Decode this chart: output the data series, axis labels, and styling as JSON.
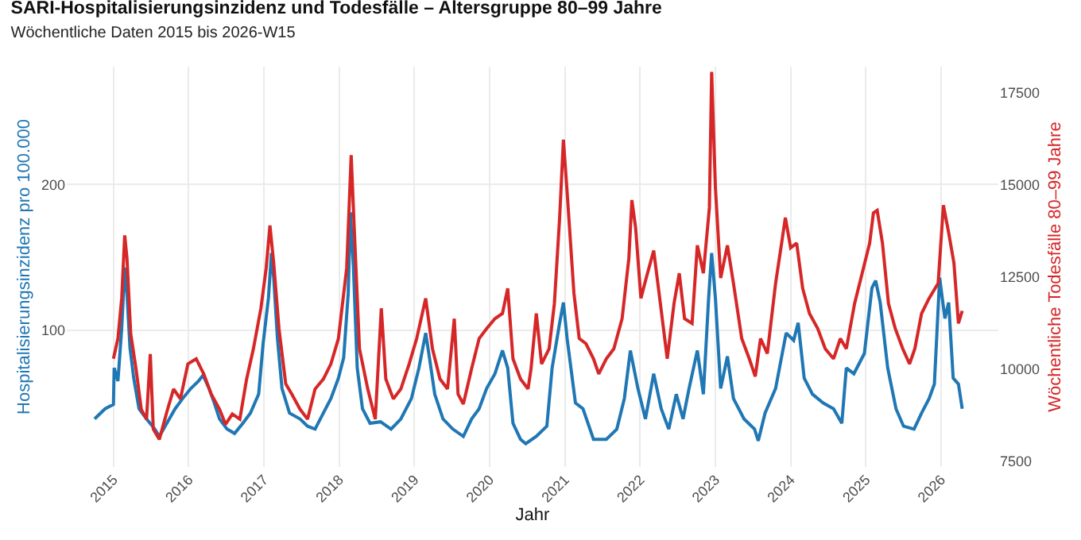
{
  "chart_data": {
    "type": "line",
    "title": "SARI-Hospitalisierungsinzidenz und Todesfälle – Altersgruppe 80–99 Jahre",
    "subtitle": "Wöchentliche Daten 2015 bis 2026-W15",
    "xlabel": "Jahr",
    "ylabel": "Hospitalisierungsinzidenz pro 100.000",
    "y2label": "Wöchentliche Todesfälle 80–99 Jahre",
    "xlim": [
      2014.38,
      2026.76
    ],
    "xticks": [
      2015,
      2016,
      2017,
      2018,
      2019,
      2020,
      2021,
      2022,
      2023,
      2024,
      2025,
      2026
    ],
    "ylim": [
      6,
      281
    ],
    "yticks": [
      100,
      200
    ],
    "y2lim": [
      7333,
      18200
    ],
    "y2ticks": [
      7500,
      10000,
      12500,
      15000,
      17500
    ],
    "grid": true,
    "line_style": "solid",
    "series": [
      {
        "color": "#1f77b4",
        "x": [
          2014.75,
          2014.89,
          2015.0,
          2015.01,
          2015.06,
          2015.11,
          2015.15,
          2015.18,
          2015.22,
          2015.27,
          2015.34,
          2015.44,
          2015.55,
          2015.61,
          2015.72,
          2015.82,
          2015.92,
          2016.03,
          2016.13,
          2016.19,
          2016.27,
          2016.34,
          2016.41,
          2016.51,
          2016.61,
          2016.72,
          2016.82,
          2016.93,
          2016.99,
          2017.06,
          2017.1,
          2017.13,
          2017.18,
          2017.24,
          2017.34,
          2017.48,
          2017.58,
          2017.68,
          2017.79,
          2017.89,
          2017.99,
          2018.06,
          2018.12,
          2018.15,
          2018.19,
          2018.24,
          2018.31,
          2018.41,
          2018.55,
          2018.69,
          2018.82,
          2018.96,
          2019.06,
          2019.15,
          2019.2,
          2019.27,
          2019.38,
          2019.51,
          2019.65,
          2019.76,
          2019.86,
          2019.96,
          2020.07,
          2020.17,
          2020.24,
          2020.31,
          2020.41,
          2020.48,
          2020.62,
          2020.76,
          2020.83,
          2020.93,
          2020.98,
          2021.03,
          2021.14,
          2021.24,
          2021.38,
          2021.55,
          2021.69,
          2021.79,
          2021.87,
          2021.97,
          2022.07,
          2022.18,
          2022.28,
          2022.38,
          2022.48,
          2022.57,
          2022.65,
          2022.76,
          2022.84,
          2022.91,
          2022.95,
          2023.0,
          2023.07,
          2023.16,
          2023.24,
          2023.38,
          2023.52,
          2023.57,
          2023.66,
          2023.8,
          2023.94,
          2024.04,
          2024.1,
          2024.18,
          2024.29,
          2024.43,
          2024.57,
          2024.68,
          2024.74,
          2024.84,
          2024.98,
          2025.08,
          2025.13,
          2025.19,
          2025.29,
          2025.4,
          2025.5,
          2025.64,
          2025.74,
          2025.84,
          2025.91,
          2025.98,
          2026.05,
          2026.1,
          2026.16,
          2026.23,
          2026.28
        ],
        "values": [
          39,
          46,
          49,
          74,
          65,
          101,
          143,
          125,
          88,
          67,
          46,
          39,
          32,
          27,
          37,
          46,
          53,
          60,
          65,
          69,
          60,
          50,
          39,
          32,
          29,
          36,
          43,
          56,
          91,
          122,
          153,
          136,
          94,
          60,
          43,
          39,
          34,
          32,
          43,
          53,
          67,
          81,
          125,
          181,
          143,
          74,
          46,
          36,
          37,
          32,
          39,
          53,
          74,
          98,
          81,
          56,
          39,
          32,
          27,
          39,
          46,
          60,
          70,
          86,
          74,
          36,
          25,
          22,
          27,
          34,
          74,
          105,
          119,
          94,
          50,
          46,
          25,
          25,
          32,
          53,
          86,
          60,
          39,
          70,
          46,
          32,
          56,
          39,
          60,
          86,
          56,
          122,
          153,
          122,
          60,
          82,
          53,
          39,
          32,
          24,
          43,
          60,
          98,
          93,
          105,
          67,
          56,
          50,
          46,
          36,
          74,
          70,
          84,
          129,
          134,
          119,
          74,
          46,
          34,
          32,
          43,
          53,
          63,
          136,
          108,
          119,
          67,
          63,
          46
        ]
      },
      {
        "color": "#d62728",
        "axis": "y2",
        "x": [
          2015.0,
          2015.06,
          2015.11,
          2015.15,
          2015.18,
          2015.23,
          2015.3,
          2015.37,
          2015.44,
          2015.49,
          2015.53,
          2015.61,
          2015.72,
          2015.8,
          2015.89,
          2015.99,
          2016.1,
          2016.2,
          2016.3,
          2016.41,
          2016.49,
          2016.58,
          2016.68,
          2016.77,
          2016.86,
          2016.96,
          2017.03,
          2017.08,
          2017.13,
          2017.2,
          2017.29,
          2017.37,
          2017.48,
          2017.58,
          2017.68,
          2017.79,
          2017.89,
          2017.99,
          2018.1,
          2018.16,
          2018.2,
          2018.27,
          2018.38,
          2018.48,
          2018.56,
          2018.62,
          2018.72,
          2018.82,
          2018.93,
          2019.03,
          2019.15,
          2019.24,
          2019.34,
          2019.44,
          2019.53,
          2019.58,
          2019.65,
          2019.76,
          2019.86,
          2019.96,
          2020.07,
          2020.17,
          2020.24,
          2020.31,
          2020.41,
          2020.51,
          2020.55,
          2020.62,
          2020.69,
          2020.79,
          2020.86,
          2020.93,
          2020.98,
          2021.03,
          2021.12,
          2021.19,
          2021.28,
          2021.38,
          2021.45,
          2021.55,
          2021.65,
          2021.76,
          2021.85,
          2021.89,
          2021.94,
          2022.01,
          2022.08,
          2022.18,
          2022.26,
          2022.36,
          2022.45,
          2022.52,
          2022.59,
          2022.69,
          2022.76,
          2022.84,
          2022.92,
          2022.95,
          2023.0,
          2023.07,
          2023.16,
          2023.24,
          2023.35,
          2023.45,
          2023.53,
          2023.6,
          2023.69,
          2023.8,
          2023.88,
          2023.93,
          2024.0,
          2024.08,
          2024.16,
          2024.25,
          2024.36,
          2024.46,
          2024.57,
          2024.66,
          2024.74,
          2024.85,
          2024.95,
          2025.05,
          2025.1,
          2025.15,
          2025.22,
          2025.3,
          2025.39,
          2025.49,
          2025.58,
          2025.65,
          2025.74,
          2025.84,
          2025.96,
          2026.03,
          2026.1,
          2026.17,
          2026.23,
          2026.28
        ],
        "values": [
          10270,
          10820,
          11910,
          13620,
          13000,
          10950,
          10000,
          8900,
          8630,
          10400,
          8360,
          8080,
          8900,
          9450,
          9180,
          10130,
          10270,
          9860,
          9310,
          8900,
          8490,
          8770,
          8630,
          9720,
          10540,
          11640,
          12730,
          13890,
          12870,
          11090,
          9590,
          9310,
          8900,
          8630,
          9450,
          9720,
          10130,
          10820,
          12730,
          15800,
          13820,
          10540,
          9450,
          8630,
          11640,
          9720,
          9180,
          9450,
          10130,
          10820,
          11910,
          10540,
          9720,
          9450,
          11360,
          9310,
          9040,
          10000,
          10820,
          11090,
          11360,
          11500,
          12180,
          10270,
          9720,
          9450,
          10000,
          11500,
          10130,
          10540,
          11770,
          14100,
          16220,
          14780,
          12050,
          10820,
          10680,
          10270,
          9860,
          10270,
          10540,
          11360,
          13000,
          14580,
          13820,
          11910,
          12460,
          13210,
          11910,
          10270,
          11770,
          12590,
          11360,
          11230,
          13350,
          12590,
          14370,
          18060,
          14920,
          12460,
          13350,
          12320,
          10820,
          10270,
          9790,
          10820,
          10410,
          12320,
          13410,
          14100,
          13280,
          13410,
          12180,
          11500,
          11090,
          10540,
          10270,
          10820,
          10540,
          11770,
          12590,
          13410,
          14230,
          14300,
          13410,
          11770,
          11090,
          10540,
          10130,
          10540,
          11500,
          11910,
          12320,
          14440,
          13690,
          12870,
          11230,
          11570
        ]
      }
    ]
  }
}
